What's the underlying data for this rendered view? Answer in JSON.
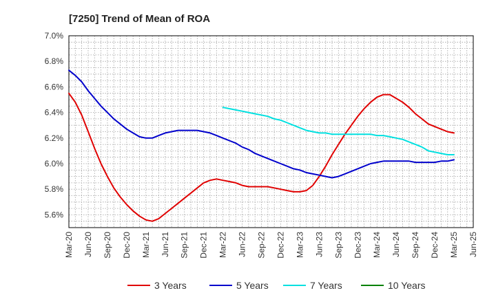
{
  "chart_data": {
    "type": "line",
    "title": "[7250]  Trend of Mean of ROA",
    "xlabel": "",
    "ylabel": "",
    "grid": true,
    "legend_placement": "bottom",
    "x_ticks": [
      "Mar-20",
      "Jun-20",
      "Sep-20",
      "Dec-20",
      "Mar-21",
      "Jun-21",
      "Sep-21",
      "Dec-21",
      "Mar-22",
      "Jun-22",
      "Sep-22",
      "Dec-22",
      "Mar-23",
      "Jun-23",
      "Sep-23",
      "Dec-23",
      "Mar-24",
      "Jun-24",
      "Sep-24",
      "Dec-24",
      "Mar-25",
      "Jun-25"
    ],
    "y_ticks": [
      "5.6%",
      "5.8%",
      "6.0%",
      "6.2%",
      "6.4%",
      "6.6%",
      "6.8%",
      "7.0%"
    ],
    "y_tick_values": [
      5.6,
      5.8,
      6.0,
      6.2,
      6.4,
      6.6,
      6.8,
      7.0
    ],
    "ylim": [
      5.5,
      7.0
    ],
    "series": [
      {
        "name": "3 Years",
        "color": "#e00000",
        "x": [
          "2020-03",
          "2020-04",
          "2020-05",
          "2020-06",
          "2020-07",
          "2020-08",
          "2020-09",
          "2020-10",
          "2020-11",
          "2020-12",
          "2021-01",
          "2021-02",
          "2021-03",
          "2021-04",
          "2021-05",
          "2021-06",
          "2021-07",
          "2021-08",
          "2021-09",
          "2021-10",
          "2021-11",
          "2021-12",
          "2022-01",
          "2022-02",
          "2022-03",
          "2022-04",
          "2022-05",
          "2022-06",
          "2022-07",
          "2022-08",
          "2022-09",
          "2022-10",
          "2022-11",
          "2022-12",
          "2023-01",
          "2023-02",
          "2023-03",
          "2023-04",
          "2023-05",
          "2023-06",
          "2023-07",
          "2023-08",
          "2023-09",
          "2023-10",
          "2023-11",
          "2023-12",
          "2024-01",
          "2024-02",
          "2024-03",
          "2024-04",
          "2024-05",
          "2024-06",
          "2024-07",
          "2024-08",
          "2024-09",
          "2024-10",
          "2024-11",
          "2024-12",
          "2025-01",
          "2025-02",
          "2025-03"
        ],
        "values": [
          6.55,
          6.48,
          6.38,
          6.25,
          6.12,
          6.0,
          5.9,
          5.81,
          5.74,
          5.68,
          5.63,
          5.59,
          5.56,
          5.55,
          5.57,
          5.61,
          5.65,
          5.69,
          5.73,
          5.77,
          5.81,
          5.85,
          5.87,
          5.88,
          5.87,
          5.86,
          5.85,
          5.83,
          5.82,
          5.82,
          5.82,
          5.82,
          5.81,
          5.8,
          5.79,
          5.78,
          5.78,
          5.79,
          5.83,
          5.9,
          5.98,
          6.07,
          6.15,
          6.23,
          6.3,
          6.37,
          6.43,
          6.48,
          6.52,
          6.54,
          6.54,
          6.51,
          6.48,
          6.44,
          6.39,
          6.35,
          6.31,
          6.29,
          6.27,
          6.25,
          6.24
        ]
      },
      {
        "name": "5 Years",
        "color": "#0000cc",
        "x": [
          "2020-03",
          "2020-04",
          "2020-05",
          "2020-06",
          "2020-07",
          "2020-08",
          "2020-09",
          "2020-10",
          "2020-11",
          "2020-12",
          "2021-01",
          "2021-02",
          "2021-03",
          "2021-04",
          "2021-05",
          "2021-06",
          "2021-07",
          "2021-08",
          "2021-09",
          "2021-10",
          "2021-11",
          "2021-12",
          "2022-01",
          "2022-02",
          "2022-03",
          "2022-04",
          "2022-05",
          "2022-06",
          "2022-07",
          "2022-08",
          "2022-09",
          "2022-10",
          "2022-11",
          "2022-12",
          "2023-01",
          "2023-02",
          "2023-03",
          "2023-04",
          "2023-05",
          "2023-06",
          "2023-07",
          "2023-08",
          "2023-09",
          "2023-10",
          "2023-11",
          "2023-12",
          "2024-01",
          "2024-02",
          "2024-03",
          "2024-04",
          "2024-05",
          "2024-06",
          "2024-07",
          "2024-08",
          "2024-09",
          "2024-10",
          "2024-11",
          "2024-12",
          "2025-01",
          "2025-02",
          "2025-03"
        ],
        "values": [
          6.73,
          6.69,
          6.64,
          6.57,
          6.51,
          6.45,
          6.4,
          6.35,
          6.31,
          6.27,
          6.24,
          6.21,
          6.2,
          6.2,
          6.22,
          6.24,
          6.25,
          6.26,
          6.26,
          6.26,
          6.26,
          6.25,
          6.24,
          6.22,
          6.2,
          6.18,
          6.16,
          6.13,
          6.11,
          6.08,
          6.06,
          6.04,
          6.02,
          6.0,
          5.98,
          5.96,
          5.95,
          5.93,
          5.92,
          5.91,
          5.9,
          5.89,
          5.9,
          5.92,
          5.94,
          5.96,
          5.98,
          6.0,
          6.01,
          6.02,
          6.02,
          6.02,
          6.02,
          6.02,
          6.01,
          6.01,
          6.01,
          6.01,
          6.02,
          6.02,
          6.03
        ]
      },
      {
        "name": "7 Years",
        "color": "#00e0e0",
        "x": [
          "2022-03",
          "2022-04",
          "2022-05",
          "2022-06",
          "2022-07",
          "2022-08",
          "2022-09",
          "2022-10",
          "2022-11",
          "2022-12",
          "2023-01",
          "2023-02",
          "2023-03",
          "2023-04",
          "2023-05",
          "2023-06",
          "2023-07",
          "2023-08",
          "2023-09",
          "2023-10",
          "2023-11",
          "2023-12",
          "2024-01",
          "2024-02",
          "2024-03",
          "2024-04",
          "2024-05",
          "2024-06",
          "2024-07",
          "2024-08",
          "2024-09",
          "2024-10",
          "2024-11",
          "2024-12",
          "2025-01",
          "2025-02",
          "2025-03"
        ],
        "values": [
          6.44,
          6.43,
          6.42,
          6.41,
          6.4,
          6.39,
          6.38,
          6.37,
          6.35,
          6.34,
          6.32,
          6.3,
          6.28,
          6.26,
          6.25,
          6.24,
          6.24,
          6.23,
          6.23,
          6.23,
          6.23,
          6.23,
          6.23,
          6.23,
          6.22,
          6.22,
          6.21,
          6.2,
          6.19,
          6.17,
          6.15,
          6.13,
          6.1,
          6.09,
          6.08,
          6.07,
          6.07
        ]
      },
      {
        "name": "10 Years",
        "color": "#008000",
        "x": [],
        "values": []
      }
    ]
  }
}
